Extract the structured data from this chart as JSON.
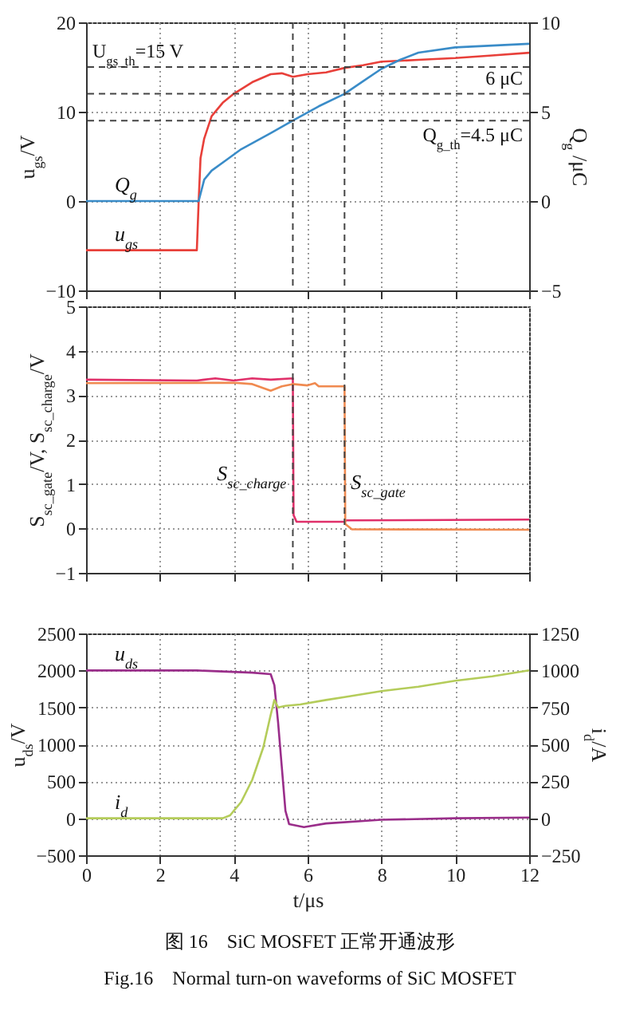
{
  "chart_data": [
    {
      "type": "line",
      "ylabel": "u$_{gs}$/V",
      "y2label": "Q$_{g}$ /μC",
      "xlim": [
        0,
        12
      ],
      "xticks": [
        0,
        2,
        4,
        6,
        8,
        10,
        12
      ],
      "ylim": [
        -10,
        20
      ],
      "yticks": [
        -10,
        0,
        10,
        20
      ],
      "y2lim": [
        -5,
        10
      ],
      "y2ticks": [
        -5,
        0,
        5,
        10
      ],
      "grid": true,
      "tick_labels": "y",
      "series": [
        {
          "color": "#e8403a",
          "x": [
            0,
            3.0,
            3.05,
            3.1,
            3.2,
            3.4,
            3.7,
            4.0,
            4.5,
            5.0,
            5.3,
            5.6,
            6.0,
            6.5,
            7.0,
            7.5,
            8.0,
            9.0,
            10.0,
            11.0,
            12
          ],
          "values": [
            -5.5,
            -5.5,
            0,
            4.8,
            7,
            9.5,
            11,
            12,
            13.3,
            14.2,
            14.3,
            13.9,
            14.2,
            14.4,
            14.9,
            15.2,
            15.6,
            15.8,
            16.0,
            16.3,
            16.6
          ],
          "name": "u$_{gs}$"
        },
        {
          "color": "#3a8cc8",
          "axis": "y2",
          "x": [
            0,
            3.05,
            3.2,
            3.4,
            3.8,
            4.2,
            5.0,
            5.6,
            6.3,
            7.0,
            7.5,
            8.0,
            8.5,
            9.0,
            10.0,
            11,
            12
          ],
          "values": [
            0,
            0,
            1.2,
            1.7,
            2.3,
            2.9,
            3.8,
            4.5,
            5.3,
            6.0,
            6.7,
            7.4,
            7.9,
            8.3,
            8.6,
            8.7,
            8.8
          ],
          "name": "Q$_{g}$"
        }
      ],
      "ref_lines": [
        {
          "axis": "y",
          "value": 15,
          "label": "U$_{gs_th}$=15 V",
          "line_style": "dashed",
          "color": "#444444"
        },
        {
          "axis": "y2",
          "value": 6,
          "label": "6 μC",
          "line_style": "dashed",
          "color": "#444444"
        },
        {
          "axis": "y2",
          "value": 4.5,
          "label": "Q$_{g_th}$=4.5 μC",
          "line_style": "dashed",
          "color": "#444444"
        },
        {
          "axis": "x",
          "value": 5.6,
          "line_style": "dashed",
          "color": "#444444"
        },
        {
          "axis": "x",
          "value": 7.0,
          "line_style": "dashed",
          "color": "#444444"
        }
      ]
    },
    {
      "type": "line",
      "ylabel": "S$_{sc_gate}$/V, S$_{sc_charge}$/V",
      "xlim": [
        0,
        12
      ],
      "xticks": [
        0,
        2,
        4,
        6,
        8,
        10,
        12
      ],
      "ylim": [
        -1,
        5
      ],
      "yticks": [
        -1,
        0,
        1,
        2,
        3,
        4,
        5
      ],
      "grid": true,
      "tick_labels": "y",
      "series": [
        {
          "color": "#e0306a",
          "x": [
            0,
            3,
            3.5,
            4,
            4.5,
            5.0,
            5.6,
            5.62,
            5.7,
            7,
            7.05,
            12
          ],
          "values": [
            3.35,
            3.33,
            3.38,
            3.33,
            3.38,
            3.35,
            3.38,
            0.3,
            0.15,
            0.15,
            0.18,
            0.2
          ],
          "name": "S$_{sc_charge}$"
        },
        {
          "color": "#f08a50",
          "x": [
            0,
            4,
            4.5,
            5.0,
            5.3,
            5.6,
            6.0,
            6.2,
            6.3,
            7.0,
            7.02,
            7.2,
            12
          ],
          "values": [
            3.27,
            3.28,
            3.25,
            3.1,
            3.2,
            3.25,
            3.22,
            3.27,
            3.2,
            3.2,
            0.1,
            -0.02,
            -0.03
          ],
          "name": "S$_{sc_gate}$"
        }
      ],
      "ref_lines": [
        {
          "axis": "x",
          "value": 5.6,
          "line_style": "dashed",
          "color": "#444444"
        },
        {
          "axis": "x",
          "value": 7.0,
          "line_style": "dashed",
          "color": "#444444"
        }
      ]
    },
    {
      "type": "line",
      "xlabel": "t/μs",
      "ylabel": "u$_{ds}$/V",
      "y2label": "i$_{d}$/A",
      "xlim": [
        0,
        12
      ],
      "xticks": [
        0,
        2,
        4,
        6,
        8,
        10,
        12
      ],
      "ylim": [
        -500,
        2500
      ],
      "yticks": [
        -500,
        0,
        500,
        1000,
        1500,
        2000,
        2500
      ],
      "y2lim": [
        -250,
        1250
      ],
      "y2ticks": [
        -250,
        0,
        250,
        500,
        750,
        1000,
        1250
      ],
      "grid": true,
      "series": [
        {
          "color": "#9a2e8a",
          "x": [
            0,
            3,
            4.5,
            5.0,
            5.1,
            5.2,
            5.3,
            5.4,
            5.5,
            5.9,
            6.5,
            8,
            10,
            12
          ],
          "values": [
            2000,
            2000,
            1970,
            1950,
            1800,
            1300,
            700,
            100,
            -80,
            -120,
            -70,
            -20,
            0,
            10
          ],
          "name": "u$_{ds}$"
        },
        {
          "color": "#b4cc5a",
          "axis": "y2",
          "x": [
            0,
            3.7,
            3.9,
            4.2,
            4.5,
            4.8,
            5.0,
            5.1,
            5.2,
            5.4,
            5.8,
            6.5,
            7,
            8,
            9,
            10,
            11,
            12
          ],
          "values": [
            0,
            0,
            20,
            110,
            260,
            480,
            700,
            800,
            750,
            760,
            770,
            800,
            820,
            860,
            890,
            930,
            960,
            1000
          ],
          "name": "i$_{d}$"
        }
      ],
      "annotations": [
        "图 16　SiC MOSFET 正常开通波形",
        "Fig.16　Normal turn-on waveforms of SiC MOSFET"
      ]
    }
  ]
}
